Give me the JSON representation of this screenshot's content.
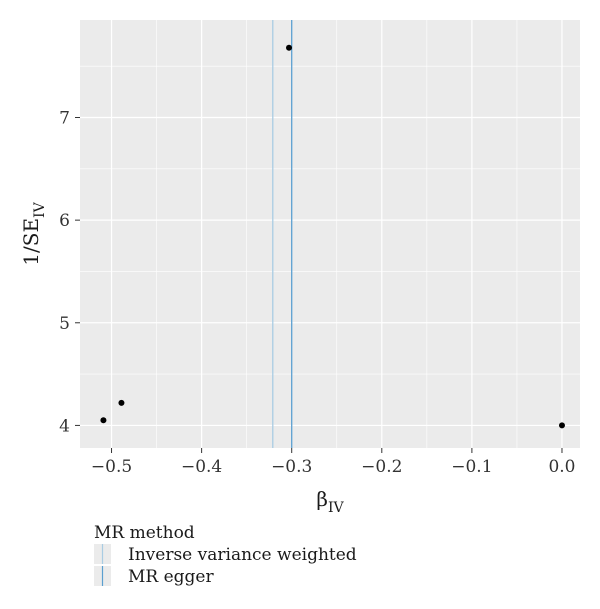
{
  "chart_data": {
    "type": "scatter",
    "xlabel": {
      "main": "β",
      "sub": "IV"
    },
    "ylabel": {
      "main": "1/SE",
      "sub": "IV"
    },
    "xlim": [
      -0.535,
      0.02
    ],
    "ylim": [
      3.78,
      7.95
    ],
    "x_ticks": [
      -0.5,
      -0.4,
      -0.3,
      -0.2,
      -0.1,
      0.0
    ],
    "x_tick_labels": [
      "−0.5",
      "−0.4",
      "−0.3",
      "−0.2",
      "−0.1",
      "0.0"
    ],
    "y_ticks": [
      4,
      5,
      6,
      7
    ],
    "y_tick_labels": [
      "4",
      "5",
      "6",
      "7"
    ],
    "grid": true,
    "background": "#ebebeb",
    "grid_color": "#ffffff",
    "point_color": "#000000",
    "points": [
      {
        "x": -0.303,
        "y": 7.68
      },
      {
        "x": -0.509,
        "y": 4.05
      },
      {
        "x": -0.489,
        "y": 4.22
      },
      {
        "x": 0.0,
        "y": 4.0
      }
    ],
    "lines": [
      {
        "name": "Inverse variance weighted",
        "x": -0.321,
        "color": "#a9cce3"
      },
      {
        "name": "MR egger",
        "x": -0.3,
        "color": "#5b9fd0"
      }
    ],
    "legend": {
      "title": "MR method",
      "position": "bottom-left",
      "entries": [
        "Inverse variance weighted",
        "MR egger"
      ]
    }
  }
}
